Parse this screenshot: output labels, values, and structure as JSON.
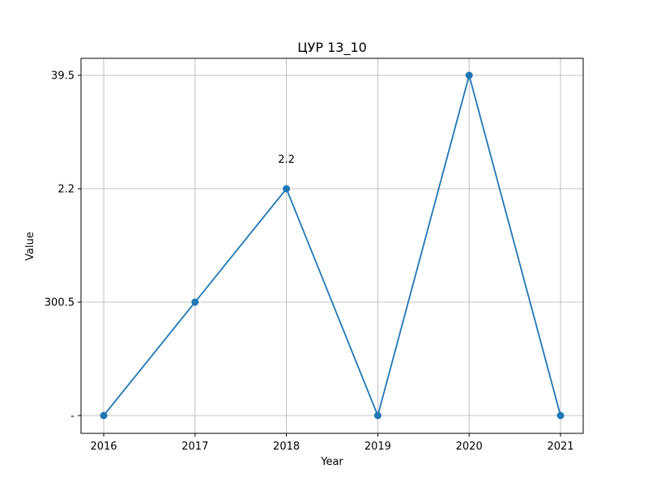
{
  "chart_data": {
    "type": "line",
    "title": "ЦУР 13_10",
    "xlabel": "Year",
    "ylabel": "Value",
    "x": [
      "2016",
      "2017",
      "2018",
      "2019",
      "2020",
      "2021"
    ],
    "y_categories": [
      "-",
      "300.5",
      "2.2",
      "39.5"
    ],
    "series": [
      {
        "values": [
          "-",
          "300.5",
          "2.2",
          "-",
          "39.5",
          "-"
        ],
        "color": "#1f77b4"
      }
    ],
    "annotations": [
      {
        "x": "2018",
        "text": "2.2"
      }
    ],
    "grid": true,
    "marker": "circle"
  }
}
